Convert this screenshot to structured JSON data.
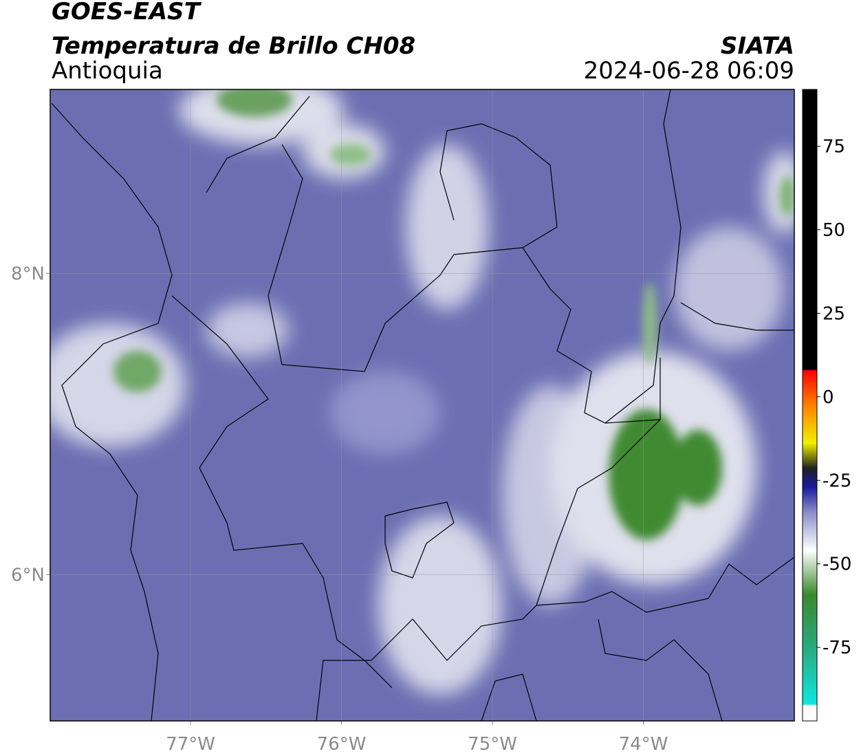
{
  "header": {
    "title": "GOES-EAST",
    "subtitle": "Temperatura de Brillo CH08",
    "region": "Antioquia",
    "source": "SIATA",
    "timestamp": "2024-06-28 06:09"
  },
  "map": {
    "xlim": [
      -77.93,
      -73.0
    ],
    "ylim": [
      5.03,
      9.22
    ],
    "xticks": [
      {
        "value": -77,
        "label": "77°W"
      },
      {
        "value": -76,
        "label": "76°W"
      },
      {
        "value": -75,
        "label": "75°W"
      },
      {
        "value": -74,
        "label": "74°W"
      }
    ],
    "yticks": [
      {
        "value": 6,
        "label": "6°N"
      },
      {
        "value": 8,
        "label": "8°N"
      }
    ],
    "grid": true,
    "colorbar": {
      "lim": [
        -97,
        92
      ],
      "ticks": [
        -75,
        -50,
        -25,
        0,
        25,
        50,
        75
      ]
    }
  }
}
